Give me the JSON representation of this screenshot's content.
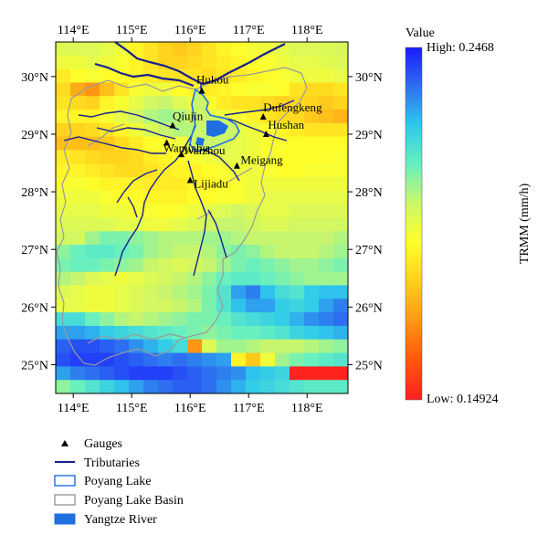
{
  "map": {
    "lon_ticks": [
      "114°E",
      "115°E",
      "116°E",
      "117°E",
      "118°E"
    ],
    "lat_ticks": [
      "30°N",
      "29°N",
      "28°N",
      "27°N",
      "26°N",
      "25°N"
    ],
    "lon_range": [
      113.7,
      118.7
    ],
    "lat_range": [
      24.5,
      30.6
    ],
    "gauges": [
      {
        "name": "Hukou",
        "lon": 116.2,
        "lat": 29.75
      },
      {
        "name": "Qiujin",
        "lon": 115.7,
        "lat": 29.15
      },
      {
        "name": "Dufengkeng",
        "lon": 117.25,
        "lat": 29.3
      },
      {
        "name": "Hushan",
        "lon": 117.3,
        "lat": 29.0
      },
      {
        "name": "Wanjiabu",
        "lon": 115.6,
        "lat": 28.85
      },
      {
        "name": "Waizhou",
        "lon": 115.85,
        "lat": 28.65
      },
      {
        "name": "Meigang",
        "lon": 116.8,
        "lat": 28.45
      },
      {
        "name": "Lijiadu",
        "lon": 116.0,
        "lat": 28.2
      }
    ]
  },
  "colorbar": {
    "title": "Value",
    "high_label": "High: 0.2468",
    "low_label": "Low: 0.14924",
    "axis_label": "TRMM (mm/h)",
    "stops": [
      "#1a1aff",
      "#2d6ff0",
      "#2ec9ec",
      "#66f0c0",
      "#ccf66a",
      "#ffff2a",
      "#ffd21e",
      "#ff9a14",
      "#ff5a0c",
      "#ff1f1f"
    ]
  },
  "legend": {
    "items": [
      {
        "key": "gauges",
        "label": "Gauges"
      },
      {
        "key": "tributaries",
        "label": "Tributaries"
      },
      {
        "key": "lake",
        "label": "Poyang Lake"
      },
      {
        "key": "basin",
        "label": "Poyang Lake Basin"
      },
      {
        "key": "yangtze",
        "label": "Yangtze River"
      }
    ]
  },
  "colors": {
    "river": "#16208f",
    "lake": "#1f6fe0",
    "basin": "#9a9a9a"
  },
  "raster_values": [
    [
      0.2,
      0.2,
      0.2,
      0.198,
      0.196,
      0.19,
      0.186,
      0.182,
      0.18,
      0.182,
      0.186,
      0.19,
      0.192,
      0.195,
      0.196,
      0.198,
      0.2,
      0.2,
      0.2,
      0.201
    ],
    [
      0.196,
      0.196,
      0.198,
      0.196,
      0.194,
      0.19,
      0.186,
      0.182,
      0.182,
      0.184,
      0.186,
      0.188,
      0.19,
      0.192,
      0.194,
      0.196,
      0.198,
      0.198,
      0.199,
      0.2
    ],
    [
      0.188,
      0.192,
      0.194,
      0.192,
      0.192,
      0.19,
      0.188,
      0.186,
      0.186,
      0.186,
      0.184,
      0.186,
      0.188,
      0.19,
      0.192,
      0.194,
      0.196,
      0.196,
      0.196,
      0.198
    ],
    [
      0.184,
      0.174,
      0.17,
      0.178,
      0.186,
      0.194,
      0.196,
      0.196,
      0.192,
      0.19,
      0.188,
      0.19,
      0.192,
      0.194,
      0.194,
      0.192,
      0.186,
      0.184,
      0.184,
      0.186
    ],
    [
      0.186,
      0.184,
      0.182,
      0.19,
      0.194,
      0.198,
      0.202,
      0.204,
      0.2,
      0.196,
      0.192,
      0.188,
      0.186,
      0.186,
      0.184,
      0.182,
      0.184,
      0.182,
      0.18,
      0.182
    ],
    [
      0.19,
      0.19,
      0.19,
      0.194,
      0.198,
      0.202,
      0.206,
      0.208,
      0.206,
      0.202,
      0.198,
      0.196,
      0.194,
      0.19,
      0.186,
      0.184,
      0.184,
      0.18,
      0.178,
      0.176
    ],
    [
      0.182,
      0.182,
      0.184,
      0.186,
      0.19,
      0.196,
      0.2,
      0.204,
      0.206,
      0.206,
      0.202,
      0.198,
      0.198,
      0.196,
      0.194,
      0.19,
      0.188,
      0.186,
      0.186,
      0.186
    ],
    [
      0.178,
      0.178,
      0.178,
      0.18,
      0.184,
      0.188,
      0.192,
      0.194,
      0.196,
      0.2,
      0.202,
      0.2,
      0.198,
      0.196,
      0.194,
      0.194,
      0.192,
      0.192,
      0.192,
      0.192
    ],
    [
      0.188,
      0.186,
      0.184,
      0.182,
      0.182,
      0.184,
      0.188,
      0.19,
      0.192,
      0.194,
      0.196,
      0.198,
      0.198,
      0.196,
      0.194,
      0.192,
      0.192,
      0.192,
      0.192,
      0.194
    ],
    [
      0.19,
      0.19,
      0.188,
      0.186,
      0.184,
      0.184,
      0.186,
      0.188,
      0.19,
      0.19,
      0.192,
      0.194,
      0.196,
      0.196,
      0.194,
      0.192,
      0.192,
      0.194,
      0.194,
      0.194
    ],
    [
      0.194,
      0.194,
      0.192,
      0.19,
      0.19,
      0.19,
      0.188,
      0.188,
      0.188,
      0.19,
      0.19,
      0.192,
      0.194,
      0.196,
      0.196,
      0.196,
      0.196,
      0.196,
      0.196,
      0.196
    ],
    [
      0.196,
      0.196,
      0.196,
      0.194,
      0.192,
      0.192,
      0.19,
      0.19,
      0.19,
      0.192,
      0.192,
      0.194,
      0.194,
      0.196,
      0.198,
      0.198,
      0.198,
      0.198,
      0.198,
      0.198
    ],
    [
      0.198,
      0.198,
      0.198,
      0.196,
      0.196,
      0.194,
      0.194,
      0.192,
      0.194,
      0.196,
      0.198,
      0.2,
      0.202,
      0.2,
      0.198,
      0.198,
      0.2,
      0.2,
      0.2,
      0.2
    ],
    [
      0.2,
      0.2,
      0.2,
      0.2,
      0.198,
      0.198,
      0.196,
      0.196,
      0.198,
      0.2,
      0.202,
      0.204,
      0.204,
      0.202,
      0.2,
      0.2,
      0.202,
      0.202,
      0.202,
      0.202
    ],
    [
      0.202,
      0.202,
      0.208,
      0.212,
      0.212,
      0.21,
      0.208,
      0.206,
      0.206,
      0.206,
      0.208,
      0.208,
      0.206,
      0.204,
      0.204,
      0.204,
      0.204,
      0.204,
      0.204,
      0.206
    ],
    [
      0.21,
      0.214,
      0.216,
      0.216,
      0.214,
      0.212,
      0.208,
      0.206,
      0.204,
      0.204,
      0.206,
      0.21,
      0.212,
      0.21,
      0.206,
      0.204,
      0.204,
      0.204,
      0.206,
      0.208
    ],
    [
      0.212,
      0.214,
      0.214,
      0.212,
      0.21,
      0.208,
      0.204,
      0.202,
      0.2,
      0.202,
      0.204,
      0.208,
      0.212,
      0.214,
      0.212,
      0.21,
      0.208,
      0.208,
      0.21,
      0.212
    ],
    [
      0.206,
      0.204,
      0.2,
      0.198,
      0.196,
      0.198,
      0.2,
      0.202,
      0.204,
      0.206,
      0.21,
      0.214,
      0.216,
      0.216,
      0.214,
      0.212,
      0.21,
      0.208,
      0.208,
      0.208
    ],
    [
      0.2,
      0.198,
      0.196,
      0.196,
      0.198,
      0.2,
      0.202,
      0.204,
      0.206,
      0.208,
      0.212,
      0.218,
      0.23,
      0.234,
      0.226,
      0.22,
      0.218,
      0.224,
      0.226,
      0.226
    ],
    [
      0.198,
      0.198,
      0.196,
      0.196,
      0.198,
      0.2,
      0.202,
      0.202,
      0.204,
      0.206,
      0.212,
      0.218,
      0.226,
      0.23,
      0.23,
      0.224,
      0.222,
      0.224,
      0.23,
      0.234
    ],
    [
      0.22,
      0.22,
      0.214,
      0.21,
      0.206,
      0.204,
      0.206,
      0.208,
      0.21,
      0.212,
      0.212,
      0.214,
      0.218,
      0.22,
      0.222,
      0.224,
      0.228,
      0.232,
      0.234,
      0.236
    ],
    [
      0.23,
      0.23,
      0.228,
      0.224,
      0.222,
      0.22,
      0.218,
      0.216,
      0.214,
      0.212,
      0.21,
      0.212,
      0.214,
      0.214,
      0.216,
      0.218,
      0.222,
      0.224,
      0.226,
      0.228
    ],
    [
      0.238,
      0.24,
      0.24,
      0.238,
      0.236,
      0.232,
      0.228,
      0.224,
      0.22,
      0.17,
      0.2,
      0.208,
      0.208,
      0.206,
      0.204,
      0.204,
      0.204,
      0.206,
      0.208,
      0.21
    ],
    [
      0.24,
      0.242,
      0.242,
      0.242,
      0.24,
      0.238,
      0.236,
      0.234,
      0.236,
      0.234,
      0.232,
      0.23,
      0.19,
      0.18,
      0.196,
      0.208,
      0.212,
      0.214,
      0.216,
      0.218
    ],
    [
      0.23,
      0.234,
      0.236,
      0.238,
      0.24,
      0.242,
      0.242,
      0.242,
      0.24,
      0.238,
      0.236,
      0.234,
      0.232,
      0.226,
      0.224,
      0.222,
      0.15,
      0.15,
      0.15,
      0.15
    ],
    [
      0.21,
      0.214,
      0.218,
      0.222,
      0.226,
      0.23,
      0.234,
      0.236,
      0.238,
      0.238,
      0.236,
      0.232,
      0.228,
      0.224,
      0.222,
      0.22,
      0.218,
      0.216,
      0.216,
      0.216
    ]
  ]
}
